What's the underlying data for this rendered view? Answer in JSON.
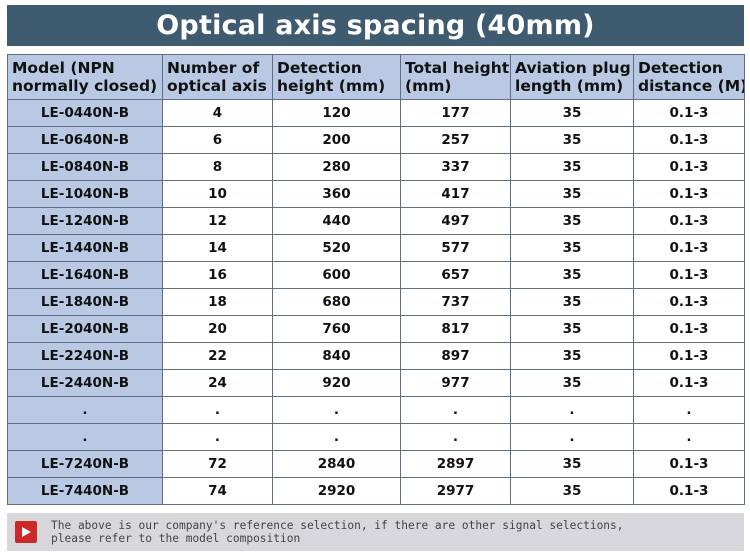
{
  "title": "Optical axis spacing (40mm)",
  "table": {
    "headers": [
      [
        "Model (NPN",
        "normally closed)"
      ],
      [
        "Number of",
        "optical axis"
      ],
      [
        "Detection",
        "height (mm)"
      ],
      [
        "Total height",
        "(mm)"
      ],
      [
        "Aviation plug",
        "length (mm)"
      ],
      [
        "Detection",
        "distance (M)"
      ]
    ],
    "rows": [
      [
        "LE-0440N-B",
        "4",
        "120",
        "177",
        "35",
        "0.1-3"
      ],
      [
        "LE-0640N-B",
        "6",
        "200",
        "257",
        "35",
        "0.1-3"
      ],
      [
        "LE-0840N-B",
        "8",
        "280",
        "337",
        "35",
        "0.1-3"
      ],
      [
        "LE-1040N-B",
        "10",
        "360",
        "417",
        "35",
        "0.1-3"
      ],
      [
        "LE-1240N-B",
        "12",
        "440",
        "497",
        "35",
        "0.1-3"
      ],
      [
        "LE-1440N-B",
        "14",
        "520",
        "577",
        "35",
        "0.1-3"
      ],
      [
        "LE-1640N-B",
        "16",
        "600",
        "657",
        "35",
        "0.1-3"
      ],
      [
        "LE-1840N-B",
        "18",
        "680",
        "737",
        "35",
        "0.1-3"
      ],
      [
        "LE-2040N-B",
        "20",
        "760",
        "817",
        "35",
        "0.1-3"
      ],
      [
        "LE-2240N-B",
        "22",
        "840",
        "897",
        "35",
        "0.1-3"
      ],
      [
        "LE-2440N-B",
        "24",
        "920",
        "977",
        "35",
        "0.1-3"
      ],
      [
        ".",
        ".",
        ".",
        ".",
        ".",
        "."
      ],
      [
        ".",
        ".",
        ".",
        ".",
        ".",
        "."
      ],
      [
        "LE-7240N-B",
        "72",
        "2840",
        "2897",
        "35",
        "0.1-3"
      ],
      [
        "LE-7440N-B",
        "74",
        "2920",
        "2977",
        "35",
        "0.1-3"
      ]
    ]
  },
  "footer": {
    "icon": "play-icon",
    "icon_color": "#cc2a2a",
    "lines": [
      "The above is our company's reference selection, if there are other signal selections,",
      "please refer to the model composition"
    ]
  },
  "colors": {
    "banner": "#3e5b70",
    "header_fill": "#b9c9e4",
    "footer_fill": "#d8d8dc"
  }
}
